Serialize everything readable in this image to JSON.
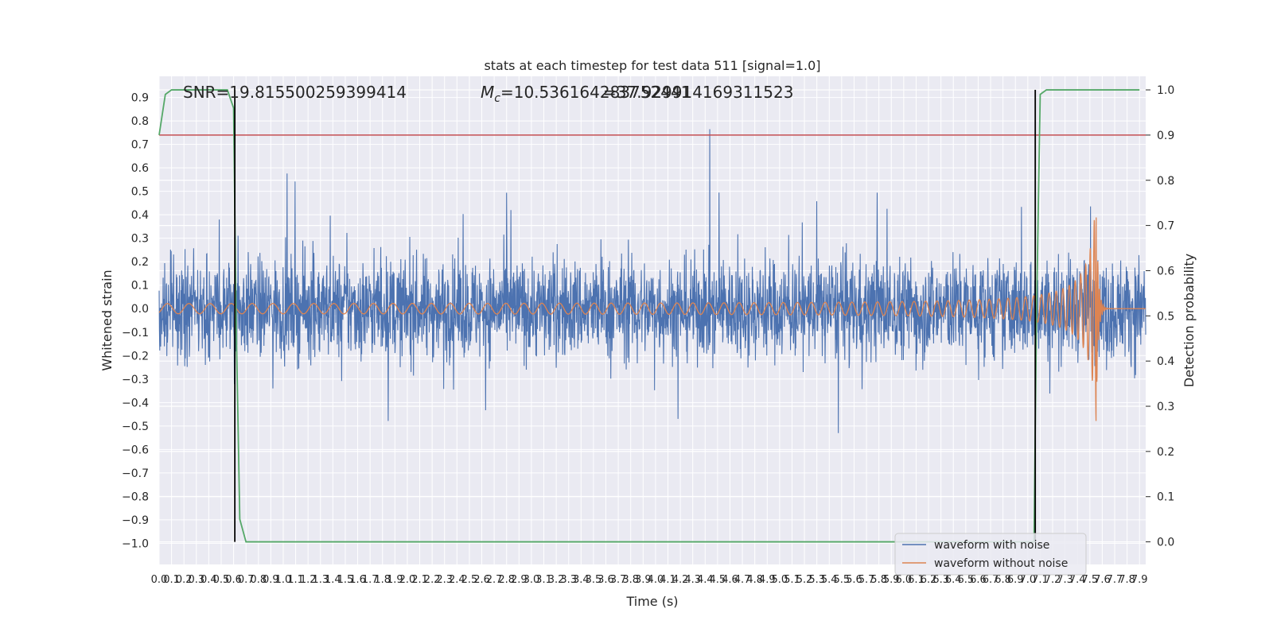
{
  "chart_data": {
    "type": "line",
    "title": "stats at each timestep for test data 511 [signal=1.0]",
    "xlabel": "Time (s)",
    "ylabel": "Whitened strain",
    "y2label": "Detection probability",
    "xlim": [
      0.0,
      7.95
    ],
    "ylim": [
      -1.09,
      0.99
    ],
    "y2lim": [
      -0.05,
      1.03
    ],
    "grid": true,
    "x_ticks": [
      "0.0",
      "0.1",
      "0.2",
      "0.3",
      "0.4",
      "0.5",
      "0.6",
      "0.7",
      "0.8",
      "0.9",
      "1.0",
      "1.1",
      "1.2",
      "1.3",
      "1.4",
      "1.5",
      "1.6",
      "1.7",
      "1.8",
      "1.9",
      "2.0",
      "2.1",
      "2.2",
      "2.3",
      "2.4",
      "2.5",
      "2.6",
      "2.7",
      "2.8",
      "2.9",
      "3.0",
      "3.1",
      "3.2",
      "3.3",
      "3.4",
      "3.5",
      "3.6",
      "3.7",
      "3.8",
      "3.9",
      "4.0",
      "4.1",
      "4.2",
      "4.3",
      "4.4",
      "4.5",
      "4.6",
      "4.7",
      "4.8",
      "4.9",
      "5.0",
      "5.1",
      "5.2",
      "5.3",
      "5.4",
      "5.5",
      "5.6",
      "5.7",
      "5.8",
      "5.9",
      "6.0",
      "6.1",
      "6.2",
      "6.3",
      "6.4",
      "6.5",
      "6.6",
      "6.7",
      "6.8",
      "6.9",
      "7.0",
      "7.1",
      "7.2",
      "7.3",
      "7.4",
      "7.5",
      "7.6",
      "7.7",
      "7.8",
      "7.9"
    ],
    "y_ticks": [
      "0.9",
      "0.8",
      "0.7",
      "0.6",
      "0.5",
      "0.4",
      "0.3",
      "0.2",
      "0.1",
      "0.0",
      "−0.1",
      "−0.2",
      "−0.3",
      "−0.4",
      "−0.5",
      "−0.6",
      "−0.7",
      "−0.8",
      "−0.9",
      "−1.0"
    ],
    "y2_ticks": [
      "1.0",
      "0.9",
      "0.8",
      "0.7",
      "0.6",
      "0.5",
      "0.4",
      "0.3",
      "0.2",
      "0.1",
      "0.0"
    ],
    "series": [
      {
        "name": "waveform with noise",
        "color": "#4c72b0",
        "axis": "left",
        "note": "noise, amplitude ~0.3, spikes up to 0.88"
      },
      {
        "name": "waveform without noise",
        "color": "#dd8452",
        "axis": "left",
        "note": "chirp, amplitude 0.02 growing to 0.48 at 7.55 s, ringdown to 0 by 7.6 s"
      },
      {
        "name": "detection probability",
        "color": "#55a868",
        "axis": "right",
        "x": [
          0.0,
          0.05,
          0.1,
          0.55,
          0.6,
          0.62,
          0.65,
          0.7,
          7.05,
          7.07,
          7.1,
          7.15,
          7.9
        ],
        "y": [
          0.9,
          0.99,
          1.0,
          1.0,
          0.96,
          0.5,
          0.05,
          0.0,
          0.0,
          0.5,
          0.99,
          1.0,
          1.0
        ]
      }
    ],
    "threshold": {
      "value": 0.9,
      "axis": "right",
      "color": "#c44e52"
    },
    "vlines": [
      {
        "x": 0.61,
        "color": "#000000"
      },
      {
        "x": 7.06,
        "color": "#000000"
      }
    ],
    "annotations": {
      "snr": "SNR=19.815500259399414",
      "mc_symbol": "M",
      "mc_sub": "c",
      "mc_text": "=10.536164283752441",
      "overlap_text": "=37.929914169311523"
    },
    "legend": {
      "position": "lower-right",
      "entries": [
        "waveform with noise",
        "waveform without noise"
      ]
    },
    "colors": {
      "background": "#eaeaf2",
      "grid": "#ffffff",
      "noise": "#4c72b0",
      "clean": "#dd8452",
      "prob": "#55a868",
      "threshold": "#c44e52"
    }
  }
}
